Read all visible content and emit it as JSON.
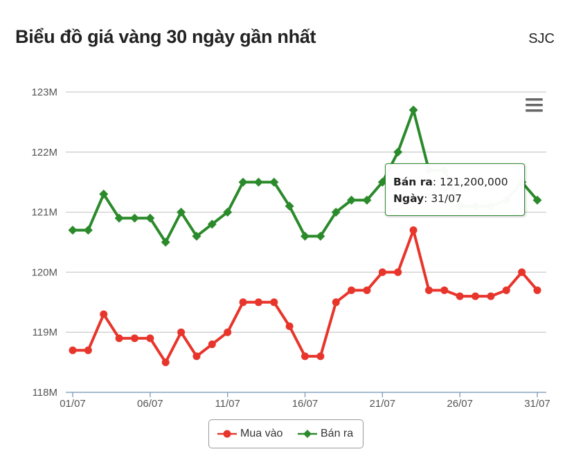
{
  "header": {
    "title": "Biểu đồ giá vàng 30 ngày gần nhất",
    "brand": "SJC"
  },
  "tooltip": {
    "label1": "Bán ra",
    "value1": "121,200,000",
    "label2": "Ngày",
    "value2": "31/07"
  },
  "colors": {
    "buy": "#e8352b",
    "sell": "#2b8a2b",
    "grid": "#cccccc"
  },
  "chart_data": {
    "type": "line",
    "title": "Biểu đồ giá vàng 30 ngày gần nhất",
    "ylim": [
      118,
      123
    ],
    "y_ticks": [
      "118M",
      "119M",
      "120M",
      "121M",
      "122M",
      "123M"
    ],
    "x": [
      "01/07",
      "02/07",
      "03/07",
      "04/07",
      "05/07",
      "06/07",
      "07/07",
      "08/07",
      "09/07",
      "10/07",
      "11/07",
      "12/07",
      "13/07",
      "14/07",
      "15/07",
      "16/07",
      "17/07",
      "18/07",
      "19/07",
      "20/07",
      "21/07",
      "22/07",
      "23/07",
      "24/07",
      "25/07",
      "26/07",
      "27/07",
      "28/07",
      "29/07",
      "30/07",
      "31/07"
    ],
    "x_tick_labels": [
      "01/07",
      "06/07",
      "11/07",
      "16/07",
      "21/07",
      "26/07",
      "31/07"
    ],
    "series": [
      {
        "name": "Mua vào",
        "color": "#e8352b",
        "marker": "circle",
        "values": [
          118.7,
          118.7,
          119.3,
          118.9,
          118.9,
          118.9,
          118.5,
          119.0,
          118.6,
          118.8,
          119.0,
          119.5,
          119.5,
          119.5,
          119.1,
          118.6,
          118.6,
          119.5,
          119.7,
          119.7,
          120.0,
          120.0,
          120.7,
          119.7,
          119.7,
          119.6,
          119.6,
          119.6,
          119.7,
          120.0,
          119.7
        ]
      },
      {
        "name": "Bán ra",
        "color": "#2b8a2b",
        "marker": "diamond",
        "values": [
          120.7,
          120.7,
          121.3,
          120.9,
          120.9,
          120.9,
          120.5,
          121.0,
          120.6,
          120.8,
          121.0,
          121.5,
          121.5,
          121.5,
          121.1,
          120.6,
          120.6,
          121.0,
          121.2,
          121.2,
          121.5,
          122.0,
          122.7,
          121.7,
          121.7,
          121.1,
          121.1,
          121.1,
          121.2,
          121.5,
          121.2
        ]
      }
    ],
    "grid": true,
    "legend": "bottom-center"
  }
}
